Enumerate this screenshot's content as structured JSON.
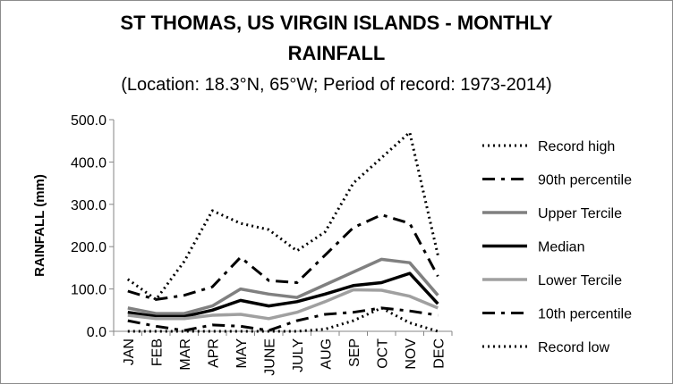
{
  "chart_data": {
    "type": "line",
    "title_line1": "ST THOMAS, US VIRGIN ISLANDS - MONTHLY",
    "title_line2": "RAINFALL",
    "subtitle": "(Location: 18.3°N, 65°W; Period of record: 1973-2014)",
    "xlabel": "",
    "ylabel": "RAINFALL (mm)",
    "ylim": [
      0,
      500
    ],
    "yticks": [
      "0.0",
      "100.0",
      "200.0",
      "300.0",
      "400.0",
      "500.0"
    ],
    "grid": false,
    "legend_position": "right",
    "categories": [
      "JAN",
      "FEB",
      "MAR",
      "APR",
      "MAY",
      "JUNE",
      "JULY",
      "AUG",
      "SEP",
      "OCT",
      "NOV",
      "DEC"
    ],
    "series": [
      {
        "name": "Record high",
        "style": "dotted",
        "color": "#000000",
        "values": [
          123,
          75,
          165,
          285,
          255,
          240,
          190,
          235,
          350,
          410,
          470,
          180
        ]
      },
      {
        "name": "90th percentile",
        "style": "dashdot",
        "color": "#000000",
        "values": [
          95,
          75,
          85,
          105,
          175,
          120,
          115,
          180,
          245,
          275,
          255,
          130
        ]
      },
      {
        "name": "Upper Tercile",
        "style": "solid",
        "color": "#808080",
        "values": [
          55,
          42,
          42,
          60,
          100,
          88,
          80,
          110,
          140,
          170,
          162,
          85
        ]
      },
      {
        "name": "Median",
        "style": "solid",
        "color": "#000000",
        "values": [
          45,
          35,
          35,
          50,
          73,
          60,
          70,
          88,
          108,
          115,
          137,
          65
        ]
      },
      {
        "name": "Lower Tercile",
        "style": "solid",
        "color": "#a0a0a0",
        "values": [
          38,
          30,
          30,
          38,
          40,
          30,
          45,
          70,
          98,
          97,
          83,
          55
        ]
      },
      {
        "name": "10th percentile",
        "style": "dashdot",
        "color": "#000000",
        "values": [
          25,
          12,
          2,
          15,
          12,
          2,
          25,
          40,
          45,
          55,
          48,
          38
        ]
      },
      {
        "name": "Record low",
        "style": "dotted",
        "color": "#000000",
        "values": [
          0,
          0,
          0,
          0,
          0,
          0,
          0,
          5,
          25,
          55,
          20,
          0
        ]
      }
    ]
  }
}
